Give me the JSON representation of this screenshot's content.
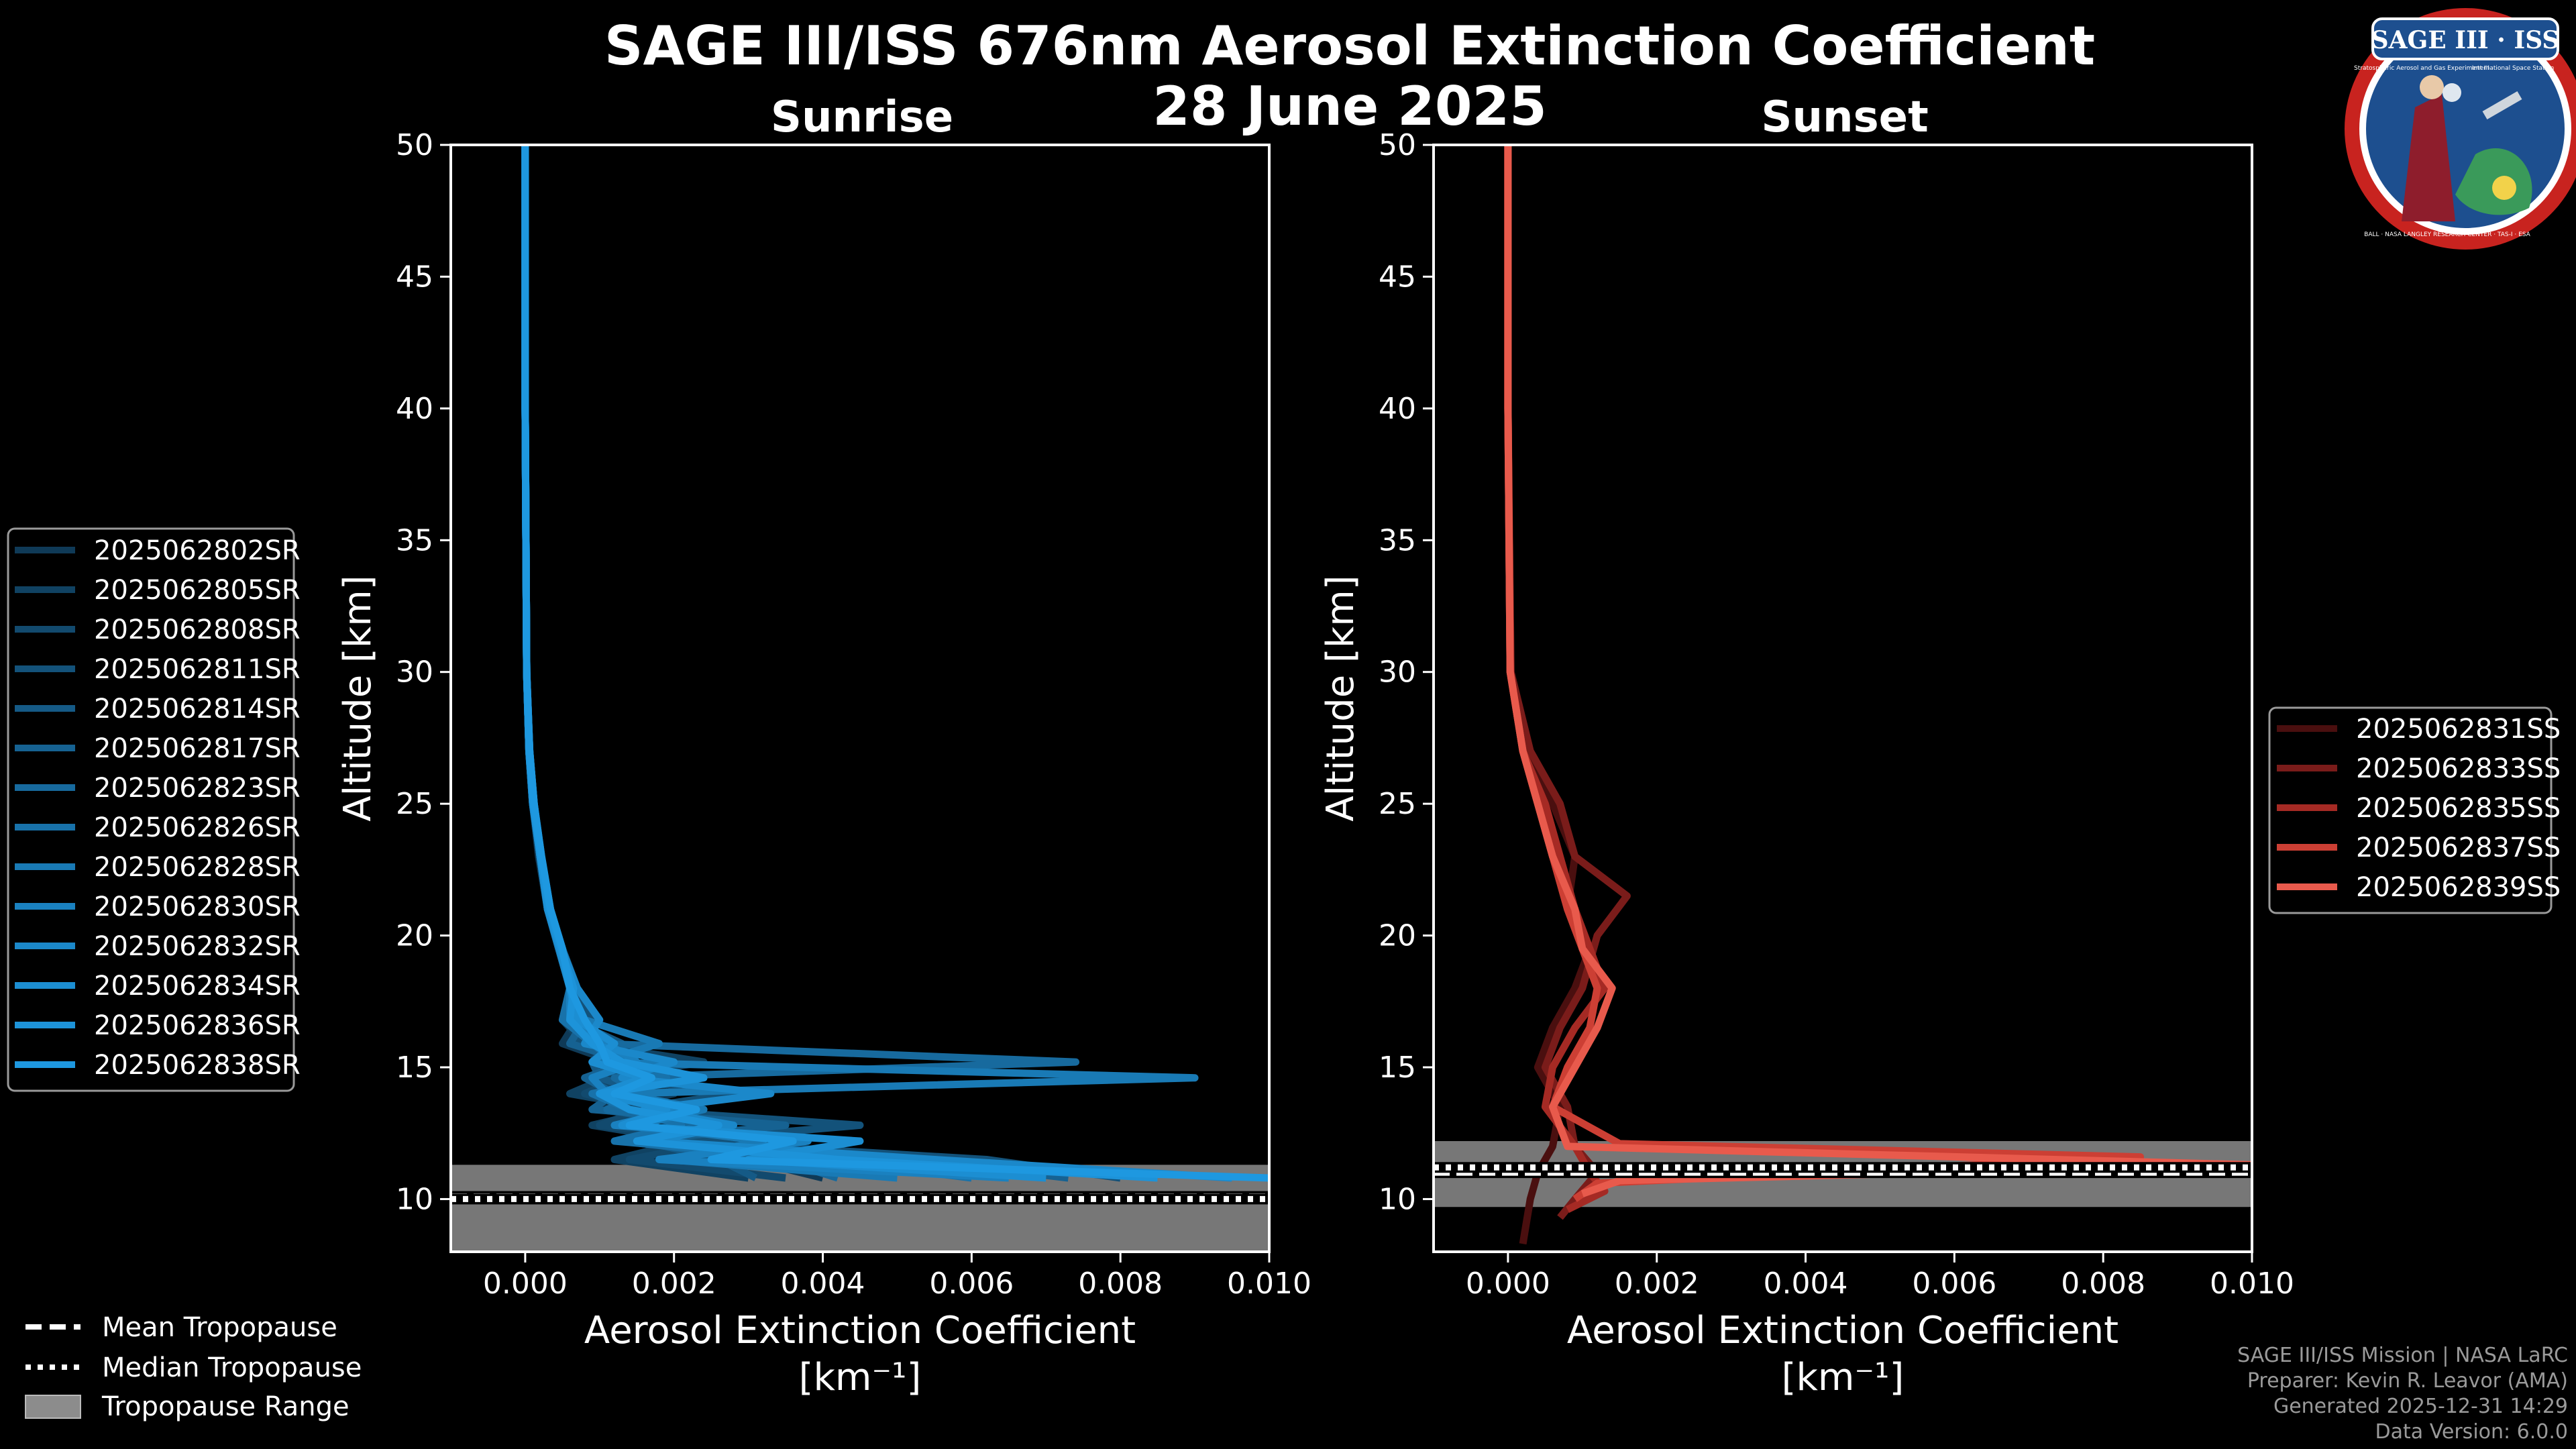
{
  "title": "SAGE III/ISS 676nm Aerosol Extinction Coefficient",
  "date": "28 June 2025",
  "logo": {
    "text": "SAGE III · ISS",
    "subtitle_left": "Stratospheric Aerosol and Gas Experiment III",
    "subtitle_right": "International Space Station",
    "ring_text": "BALL · NASA LANGLEY RESEARCH CENTER · TAS-I · ESA"
  },
  "colors": {
    "background": "#000000",
    "sunrise": "#1f8fd6",
    "sunset": "#e3584a",
    "tropopause_band": "#8c8c8c"
  },
  "legend_tropopause": {
    "mean": "Mean Tropopause",
    "median": "Median Tropopause",
    "range": "Tropopause Range"
  },
  "footer": {
    "line1": "SAGE III/ISS Mission | NASA LaRC",
    "line2": "Preparer: Kevin R. Leavor (AMA)",
    "line3": "Generated 2025-12-31 14:29",
    "line4": "Data Version: 6.0.0"
  },
  "chart_data": [
    {
      "type": "line",
      "title": "Sunrise",
      "xlabel": "Aerosol Extinction Coefficient",
      "xunits": "[km⁻¹]",
      "ylabel": "Altitude [km]",
      "xlim": [
        -0.001,
        0.01
      ],
      "ylim": [
        8,
        50
      ],
      "xticks": [
        "0.000",
        "0.002",
        "0.004",
        "0.006",
        "0.008",
        "0.010"
      ],
      "yticks": [
        "10",
        "15",
        "20",
        "25",
        "30",
        "35",
        "40",
        "45",
        "50"
      ],
      "tropopause": {
        "mean": 10.1,
        "median": 10.0,
        "range": [
          8.0,
          11.3
        ]
      },
      "series": [
        {
          "name": "2025062802SR",
          "color": "#0f3a57",
          "x": [
            0,
            0,
            2e-05,
            5e-05,
            0.0001,
            0.00018,
            0.0003,
            0.00045,
            0.0006,
            0.0007,
            0.0005,
            0.0012,
            0.0009,
            0.002,
            0.001,
            0.0025,
            0.0015,
            0.003,
            0.004
          ],
          "y": [
            50,
            40,
            30,
            27,
            25,
            23,
            21,
            19.5,
            18,
            16.8,
            15.9,
            15.2,
            14.6,
            14,
            13.4,
            12.8,
            12.2,
            11.5,
            10.8
          ]
        },
        {
          "name": "2025062805SR",
          "color": "#104262",
          "x": [
            0,
            0,
            2e-05,
            6e-05,
            0.00012,
            0.0002,
            0.00032,
            0.00048,
            0.0006,
            0.0005,
            0.0008,
            0.0024,
            0.0011,
            0.0006,
            0.0018,
            0.0009,
            0.0022,
            0.0012,
            0.003
          ],
          "y": [
            50,
            40,
            30,
            27,
            25,
            23,
            21,
            19.5,
            18,
            16.8,
            15.9,
            15.2,
            14.6,
            14,
            13.4,
            12.8,
            12.2,
            11.5,
            10.8
          ]
        },
        {
          "name": "2025062808SR",
          "color": "#124a6e",
          "x": [
            0,
            0,
            2e-05,
            5e-05,
            0.0001,
            0.0002,
            0.0003,
            0.00045,
            0.00065,
            0.0007,
            0.0011,
            0.0009,
            0.0013,
            0.0008,
            0.0016,
            0.001,
            0.0027,
            0.0014,
            0.0035
          ],
          "y": [
            50,
            40,
            30,
            27,
            25,
            23,
            21,
            19.5,
            18,
            16.8,
            15.9,
            15.2,
            14.6,
            14,
            13.4,
            12.8,
            12.2,
            11.5,
            10.8
          ]
        },
        {
          "name": "2025062811SR",
          "color": "#13527a",
          "x": [
            0,
            0,
            2e-05,
            5e-05,
            0.00011,
            0.0002,
            0.00031,
            0.00047,
            0.0006,
            0.0009,
            0.0007,
            0.0015,
            0.0012,
            0.0028,
            0.0014,
            0.0045,
            0.002,
            0.0062,
            0.008
          ],
          "y": [
            50,
            40,
            30,
            27,
            25,
            23,
            21,
            19.5,
            18,
            16.8,
            15.9,
            15.2,
            14.6,
            14,
            13.4,
            12.8,
            12.2,
            11.5,
            10.8
          ]
        },
        {
          "name": "2025062814SR",
          "color": "#155a86",
          "x": [
            0,
            0,
            2e-05,
            6e-05,
            0.00012,
            0.00021,
            0.00033,
            0.0005,
            0.0007,
            0.0006,
            0.0013,
            0.0009,
            0.001,
            0.0017,
            0.0011,
            0.0022,
            0.0016,
            0.0026,
            0.0031
          ],
          "y": [
            50,
            40,
            30,
            27,
            25,
            23,
            21,
            19.5,
            18,
            16.8,
            15.9,
            15.2,
            14.6,
            14,
            13.4,
            12.8,
            12.2,
            11.5,
            10.8
          ]
        },
        {
          "name": "2025062817SR",
          "color": "#166292",
          "x": [
            0,
            0,
            2e-05,
            5e-05,
            0.0001,
            0.0002,
            0.0003,
            0.00046,
            0.0006,
            0.0008,
            0.0006,
            0.0014,
            0.0008,
            0.0012,
            0.0009,
            0.0035,
            0.0015,
            0.0052,
            0.0073
          ],
          "y": [
            50,
            40,
            30,
            27,
            25,
            23,
            21,
            19.5,
            18,
            16.8,
            15.9,
            15.2,
            14.6,
            14,
            13.4,
            12.8,
            12.2,
            11.5,
            10.8
          ]
        },
        {
          "name": "2025062823SR",
          "color": "#176a9e",
          "x": [
            0,
            0,
            2e-05,
            5e-05,
            0.00011,
            0.0002,
            0.00032,
            0.00048,
            0.00065,
            0.0007,
            0.001,
            0.0074,
            0.0012,
            0.0016,
            0.0011,
            0.0025,
            0.0013,
            0.0034,
            0.0042
          ],
          "y": [
            50,
            40,
            30,
            27,
            25,
            23,
            21,
            19.5,
            18,
            16.8,
            15.9,
            15.2,
            14.6,
            14,
            13.4,
            12.8,
            12.2,
            11.5,
            10.8
          ]
        },
        {
          "name": "2025062826SR",
          "color": "#1872aa",
          "x": [
            0,
            0,
            2e-05,
            6e-05,
            0.00012,
            0.00022,
            0.00034,
            0.0005,
            0.0006,
            0.0005,
            0.0009,
            0.0012,
            0.0019,
            0.0009,
            0.0014,
            0.0021,
            0.0012,
            0.004,
            0.006
          ],
          "y": [
            50,
            40,
            30,
            27,
            25,
            23,
            21,
            19.5,
            18,
            16.8,
            15.9,
            15.2,
            14.6,
            14,
            13.4,
            12.8,
            12.2,
            11.5,
            10.8
          ]
        },
        {
          "name": "2025062828SR",
          "color": "#197ab5",
          "x": [
            0,
            0,
            2e-05,
            5e-05,
            0.0001,
            0.0002,
            0.0003,
            0.00045,
            0.0006,
            0.0008,
            0.0018,
            0.001,
            0.009,
            0.0013,
            0.0024,
            0.0015,
            0.0032,
            0.0019,
            0.005
          ],
          "y": [
            50,
            40,
            30,
            27,
            25,
            23,
            21,
            19.5,
            18,
            16.8,
            15.9,
            15.2,
            14.6,
            14,
            13.4,
            12.8,
            12.2,
            11.5,
            10.8
          ]
        },
        {
          "name": "2025062830SR",
          "color": "#1a81c0",
          "x": [
            0,
            0,
            2e-05,
            5e-05,
            0.00011,
            0.0002,
            0.00031,
            0.00047,
            0.0006,
            0.0006,
            0.0011,
            0.0015,
            0.0009,
            0.0011,
            0.0021,
            0.0012,
            0.0038,
            0.0018,
            0.0065
          ],
          "y": [
            50,
            40,
            30,
            27,
            25,
            23,
            21,
            19.5,
            18,
            16.8,
            15.9,
            15.2,
            14.6,
            14,
            13.4,
            12.8,
            12.2,
            11.5,
            10.8
          ]
        },
        {
          "name": "2025062832SR",
          "color": "#1b88ca",
          "x": [
            0,
            0,
            2e-05,
            6e-05,
            0.00012,
            0.00021,
            0.00033,
            0.00049,
            0.0007,
            0.001,
            0.0008,
            0.002,
            0.0013,
            0.0033,
            0.0016,
            0.0028,
            0.0017,
            0.0055,
            0.0095
          ],
          "y": [
            50,
            40,
            30,
            27,
            25,
            23,
            21,
            19.5,
            18,
            16.8,
            15.9,
            15.2,
            14.6,
            14,
            13.4,
            12.8,
            12.2,
            11.5,
            10.8
          ]
        },
        {
          "name": "2025062834SR",
          "color": "#1c8ed2",
          "x": [
            0,
            0,
            2e-05,
            5e-05,
            0.0001,
            0.0002,
            0.0003,
            0.00046,
            0.0006,
            0.0007,
            0.0012,
            0.0009,
            0.0016,
            0.001,
            0.0019,
            0.0013,
            0.0045,
            0.003,
            0.007
          ],
          "y": [
            50,
            40,
            30,
            27,
            25,
            23,
            21,
            19.5,
            18,
            16.8,
            15.9,
            15.2,
            14.6,
            14,
            13.4,
            12.8,
            12.2,
            11.5,
            10.8
          ]
        },
        {
          "name": "2025062836SR",
          "color": "#1d93d9",
          "x": [
            0,
            0,
            2e-05,
            5e-05,
            0.00011,
            0.0002,
            0.00032,
            0.00048,
            0.00065,
            0.0006,
            0.0009,
            0.0013,
            0.0024,
            0.001,
            0.0014,
            0.0026,
            0.0015,
            0.0042,
            0.0085
          ],
          "y": [
            50,
            40,
            30,
            27,
            25,
            23,
            21,
            19.5,
            18,
            16.8,
            15.9,
            15.2,
            14.6,
            14,
            13.4,
            12.8,
            12.2,
            11.5,
            10.8
          ]
        },
        {
          "name": "2025062838SR",
          "color": "#1e98e0",
          "x": [
            0,
            0,
            2e-05,
            6e-05,
            0.00012,
            0.00022,
            0.00034,
            0.0005,
            0.0006,
            0.0008,
            0.001,
            0.0011,
            0.0017,
            0.0012,
            0.0023,
            0.0014,
            0.0036,
            0.0025,
            0.01
          ],
          "y": [
            50,
            40,
            30,
            27,
            25,
            23,
            21,
            19.5,
            18,
            16.8,
            15.9,
            15.2,
            14.6,
            14,
            13.4,
            12.8,
            12.2,
            11.5,
            10.8
          ]
        }
      ]
    },
    {
      "type": "line",
      "title": "Sunset",
      "xlabel": "Aerosol Extinction Coefficient",
      "xunits": "[km⁻¹]",
      "ylabel": "Altitude [km]",
      "xlim": [
        -0.001,
        0.01
      ],
      "ylim": [
        8,
        50
      ],
      "xticks": [
        "0.000",
        "0.002",
        "0.004",
        "0.006",
        "0.008",
        "0.010"
      ],
      "yticks": [
        "10",
        "15",
        "20",
        "25",
        "30",
        "35",
        "40",
        "45",
        "50"
      ],
      "tropopause": {
        "mean": 11.0,
        "median": 11.2,
        "range": [
          9.7,
          12.2
        ]
      },
      "series": [
        {
          "name": "2025062831SS",
          "color": "#4a0f0f",
          "x": [
            0,
            0,
            3e-05,
            0.0002,
            0.0006,
            0.0009,
            0.0008,
            0.0011,
            0.0009,
            0.0006,
            0.0004,
            0.0007,
            0.0006,
            0.0004,
            0.0003,
            0.0002
          ],
          "y": [
            50,
            40,
            30,
            27,
            25,
            23,
            21,
            19.5,
            18,
            16.5,
            15,
            13.5,
            12,
            11,
            10,
            8.3
          ]
        },
        {
          "name": "2025062833SS",
          "color": "#7a1c1a",
          "x": [
            0,
            0,
            4e-05,
            0.0003,
            0.0007,
            0.0009,
            0.0016,
            0.0012,
            0.001,
            0.0007,
            0.0005,
            0.0008,
            0.0009,
            0.0012,
            0.0009,
            0.0007
          ],
          "y": [
            50,
            40,
            30,
            27,
            25,
            23,
            21.5,
            20,
            18,
            16.5,
            15,
            13.5,
            12,
            11,
            10,
            9.3
          ]
        },
        {
          "name": "2025062835SS",
          "color": "#a52a24",
          "x": [
            0,
            0,
            3e-05,
            0.0002,
            0.0005,
            0.0007,
            0.0009,
            0.0011,
            0.0013,
            0.0009,
            0.0006,
            0.0005,
            0.0009,
            0.0011,
            0.0013,
            0.0008
          ],
          "y": [
            50,
            40,
            30,
            27,
            25,
            23,
            21,
            19.5,
            18,
            16.5,
            15,
            13.5,
            12,
            11,
            10.3,
            9.6
          ]
        },
        {
          "name": "2025062837SS",
          "color": "#cc3f34",
          "x": [
            0,
            0,
            3e-05,
            0.0002,
            0.0004,
            0.0006,
            0.0008,
            0.001,
            0.0012,
            0.0011,
            0.0008,
            0.0006,
            0.0015,
            0.0085,
            0.0012,
            0.0009
          ],
          "y": [
            50,
            40,
            30,
            27,
            25,
            23,
            21,
            19.5,
            18,
            16.5,
            15,
            13.5,
            12.1,
            11.6,
            10.6,
            10
          ]
        },
        {
          "name": "2025062839SS",
          "color": "#e85a4c",
          "x": [
            0,
            0,
            3e-05,
            0.0002,
            0.0004,
            0.0006,
            0.0009,
            0.001,
            0.0014,
            0.0012,
            0.0009,
            0.0006,
            0.0008,
            0.01,
            0.0015,
            0.001
          ],
          "y": [
            50,
            40,
            30,
            27,
            25,
            23,
            21,
            19.5,
            18,
            16.5,
            15,
            13.5,
            12,
            11.3,
            10.7,
            10.2
          ]
        }
      ]
    }
  ]
}
